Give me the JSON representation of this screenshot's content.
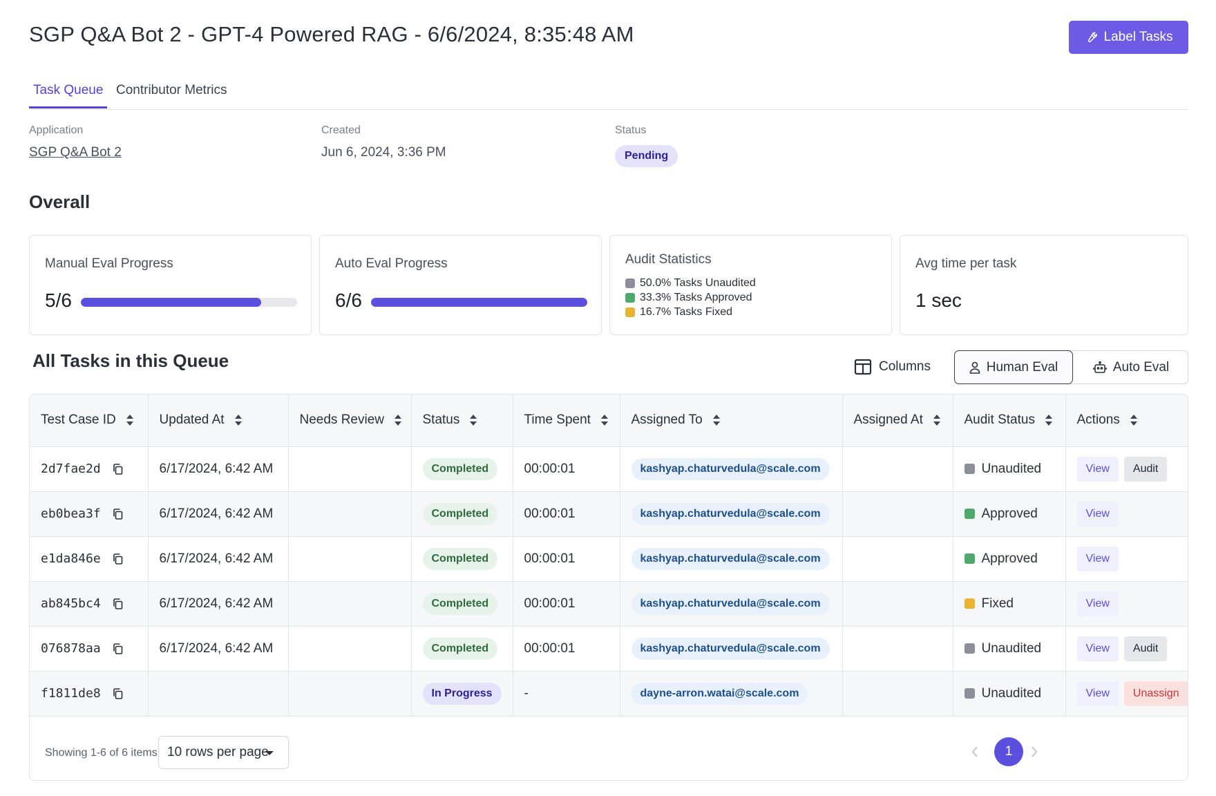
{
  "header": {
    "title": "SGP Q&A Bot 2 - GPT-4 Powered RAG - 6/6/2024, 8:35:48 AM",
    "label_button": "Label Tasks"
  },
  "tabs": [
    {
      "label": "Task Queue",
      "active": true
    },
    {
      "label": "Contributor Metrics",
      "active": false
    }
  ],
  "meta": {
    "application": {
      "label": "Application",
      "value": "SGP Q&A Bot 2"
    },
    "created": {
      "label": "Created",
      "value": "Jun 6, 2024, 3:36 PM"
    },
    "status": {
      "label": "Status",
      "value": "Pending"
    }
  },
  "overall": {
    "title": "Overall",
    "manual": {
      "title": "Manual Eval Progress",
      "value": "5/6",
      "progress": 0.833
    },
    "auto": {
      "title": "Auto Eval Progress",
      "value": "6/6",
      "progress": 1.0
    },
    "audit": {
      "title": "Audit Statistics",
      "items": [
        {
          "text": "50.0% Tasks Unaudited",
          "color": "#8c8f99"
        },
        {
          "text": "33.3% Tasks Approved",
          "color": "#4eaa6b"
        },
        {
          "text": "16.7% Tasks Fixed",
          "color": "#e8b431"
        }
      ]
    },
    "avg_time": {
      "title": "Avg time per task",
      "value": "1 sec"
    }
  },
  "tasks": {
    "title": "All Tasks in this Queue",
    "columns_button": "Columns",
    "mode_options": [
      {
        "label": "Human Eval",
        "selected": true
      },
      {
        "label": "Auto Eval",
        "selected": false
      }
    ],
    "headers": [
      "Test Case ID",
      "Updated At",
      "Needs Review",
      "Status",
      "Time Spent",
      "Assigned To",
      "Assigned At",
      "Audit Status",
      "Actions"
    ],
    "rows": [
      {
        "id": "2d7fae2d",
        "updated": "6/17/2024, 6:42 AM",
        "needs_review": "",
        "status": "Completed",
        "time": "00:00:01",
        "assignee": "kashyap.chaturvedula@scale.com",
        "assigned_at": "",
        "audit": "Unaudited",
        "audit_color": "#8c8f99",
        "view": "View",
        "extra": "Audit"
      },
      {
        "id": "eb0bea3f",
        "updated": "6/17/2024, 6:42 AM",
        "needs_review": "",
        "status": "Completed",
        "time": "00:00:01",
        "assignee": "kashyap.chaturvedula@scale.com",
        "assigned_at": "",
        "audit": "Approved",
        "audit_color": "#4eaa6b",
        "view": "View",
        "extra": ""
      },
      {
        "id": "e1da846e",
        "updated": "6/17/2024, 6:42 AM",
        "needs_review": "",
        "status": "Completed",
        "time": "00:00:01",
        "assignee": "kashyap.chaturvedula@scale.com",
        "assigned_at": "",
        "audit": "Approved",
        "audit_color": "#4eaa6b",
        "view": "View",
        "extra": ""
      },
      {
        "id": "ab845bc4",
        "updated": "6/17/2024, 6:42 AM",
        "needs_review": "",
        "status": "Completed",
        "time": "00:00:01",
        "assignee": "kashyap.chaturvedula@scale.com",
        "assigned_at": "",
        "audit": "Fixed",
        "audit_color": "#e8b431",
        "view": "View",
        "extra": ""
      },
      {
        "id": "076878aa",
        "updated": "6/17/2024, 6:42 AM",
        "needs_review": "",
        "status": "Completed",
        "time": "00:00:01",
        "assignee": "kashyap.chaturvedula@scale.com",
        "assigned_at": "",
        "audit": "Unaudited",
        "audit_color": "#8c8f99",
        "view": "View",
        "extra": "Audit"
      },
      {
        "id": "f1811de8",
        "updated": "",
        "needs_review": "",
        "status": "In Progress",
        "time": "-",
        "assignee": "dayne-arron.watai@scale.com",
        "assigned_at": "",
        "audit": "Unaudited",
        "audit_color": "#8c8f99",
        "view": "View",
        "extra": "Unassign"
      }
    ],
    "footer": {
      "showing": "Showing 1-6 of 6 items",
      "rows_per_page": "10 rows per page",
      "current_page": "1"
    }
  }
}
